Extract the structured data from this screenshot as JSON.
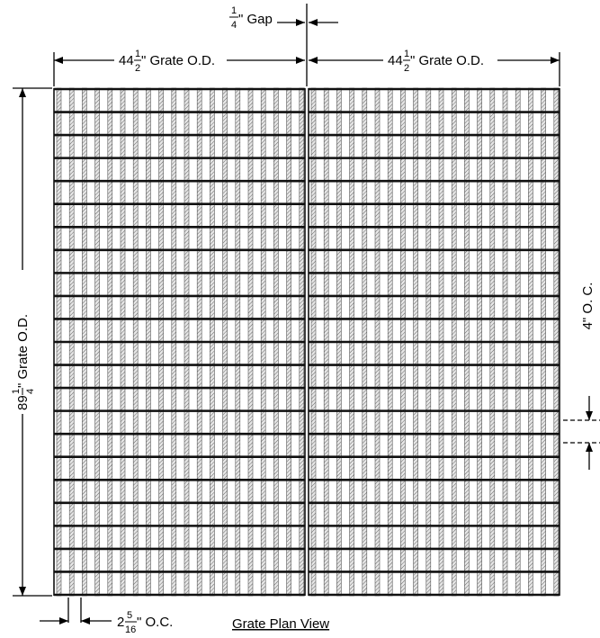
{
  "gap": {
    "num": "1",
    "den": "4",
    "text": "\" Gap"
  },
  "width_left": {
    "whole": "44",
    "num": "1",
    "den": "2",
    "text": "\" Grate O.D."
  },
  "width_right": {
    "whole": "44",
    "num": "1",
    "den": "2",
    "text": "\" Grate O.D."
  },
  "length": {
    "whole": "89",
    "num": "1",
    "den": "4",
    "text": "\" Grate O.D."
  },
  "crossbar_spacing": "4\" O. C.",
  "bar_spacing": {
    "whole": "2",
    "num": "5",
    "den": "16",
    "text": "\" O.C."
  },
  "title": "Grate Plan View"
}
